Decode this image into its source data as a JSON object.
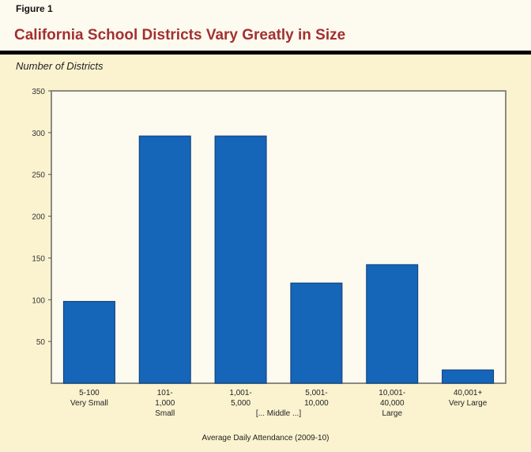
{
  "figure_label": "Figure 1",
  "chart_data": {
    "type": "bar",
    "title": "California School Districts Vary Greatly in Size",
    "ylabel": "Number of Districts",
    "xlabel": "Average Daily Attendance (2009-10)",
    "ylim": [
      0,
      350
    ],
    "yticks": [
      50,
      100,
      150,
      200,
      250,
      300,
      350
    ],
    "categories": [
      [
        "5-100",
        "Very Small"
      ],
      [
        "101-",
        "1,000",
        "Small"
      ],
      [
        "1,001-",
        "5,000"
      ],
      [
        "5,001-",
        "10,000"
      ],
      [
        "10,001-",
        "40,000",
        "Large"
      ],
      [
        "40,001+",
        "Very Large"
      ]
    ],
    "group_labels": [
      {
        "label": "[... Middle ...]",
        "spans": [
          2,
          3
        ]
      }
    ],
    "values": [
      98,
      296,
      296,
      120,
      142,
      16
    ],
    "bar_color": "#1565b8",
    "grid": false
  }
}
